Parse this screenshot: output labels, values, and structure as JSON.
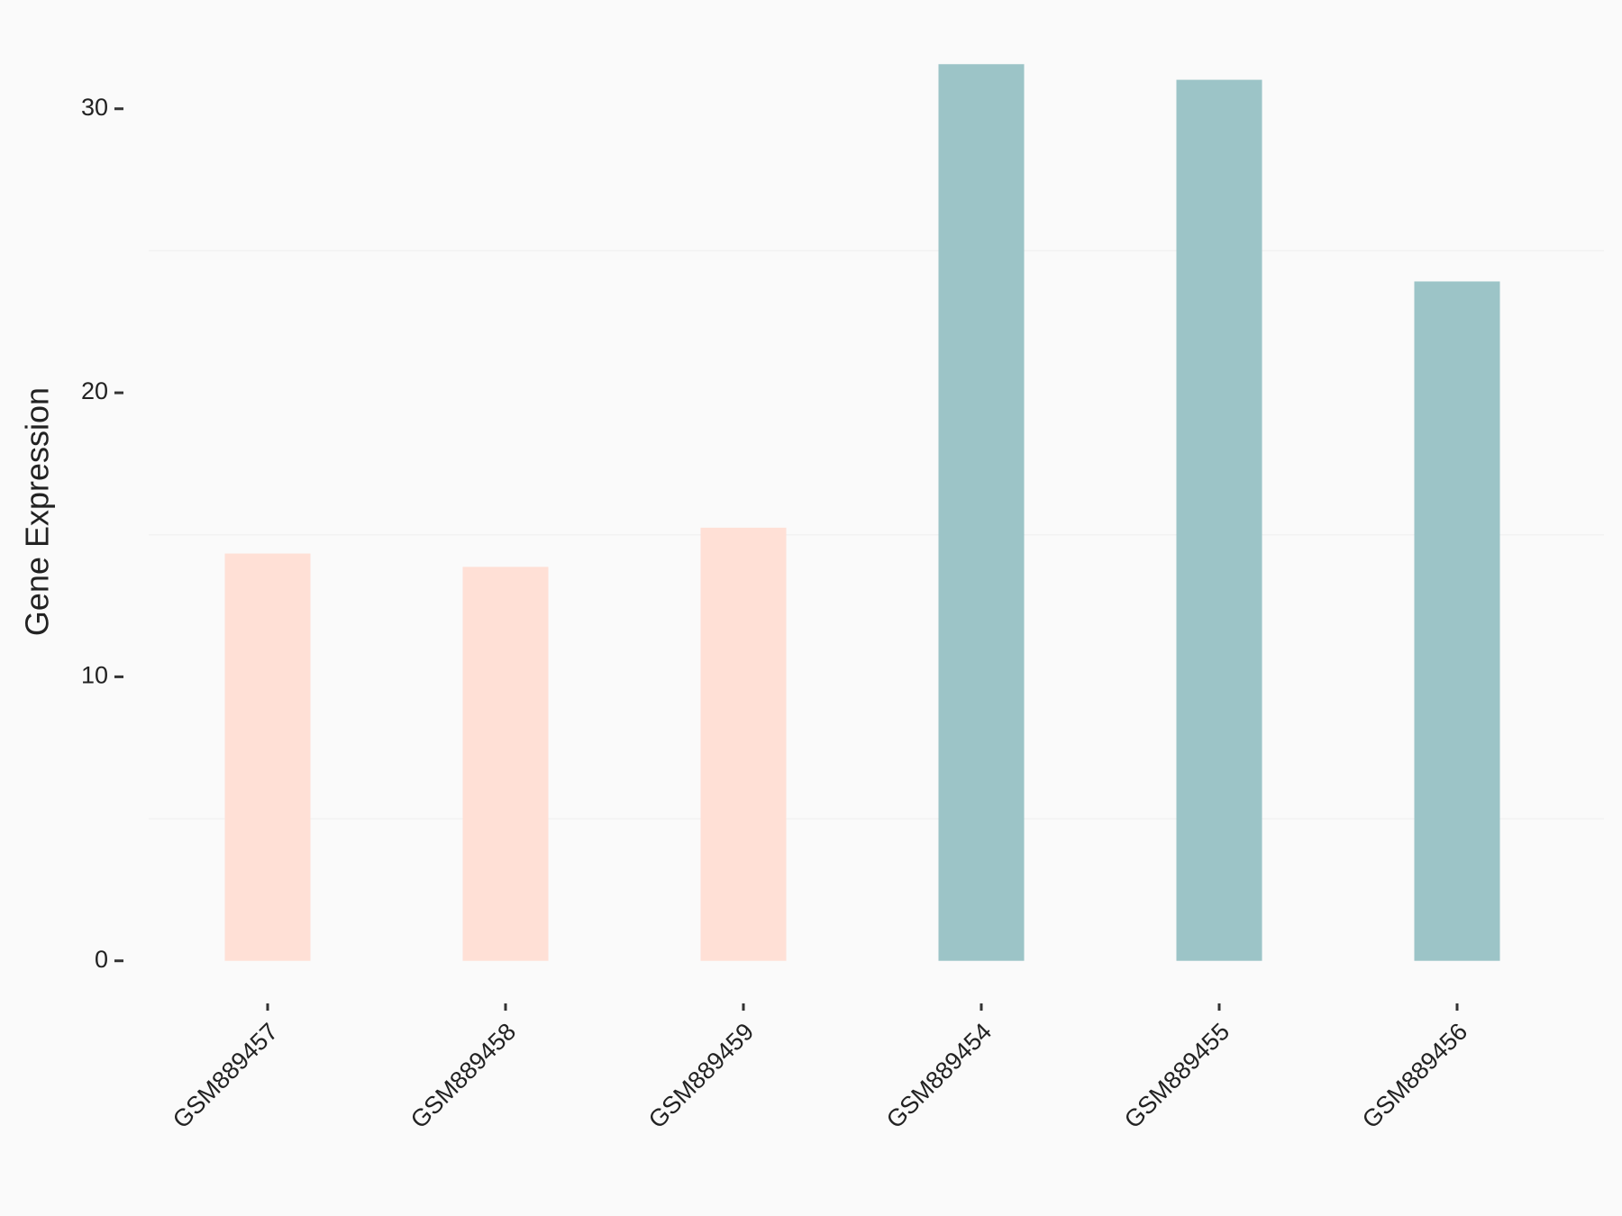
{
  "chart_data": {
    "type": "bar",
    "y_label": "Gene Expression",
    "categories": [
      "GSM889457",
      "GSM889458",
      "GSM889459",
      "GSM889454",
      "GSM889455",
      "GSM889456"
    ],
    "values": [
      14.34,
      13.87,
      15.25,
      31.57,
      31.02,
      23.92
    ],
    "colors": [
      "#ffe0d6",
      "#ffe0d6",
      "#ffe0d6",
      "#9cc4c7",
      "#9cc4c7",
      "#9cc4c7"
    ],
    "ylim": [
      -1.5,
      33.1
    ],
    "yticks": [
      0,
      10,
      20,
      30
    ],
    "minor_grid": [
      5,
      15,
      25
    ]
  }
}
